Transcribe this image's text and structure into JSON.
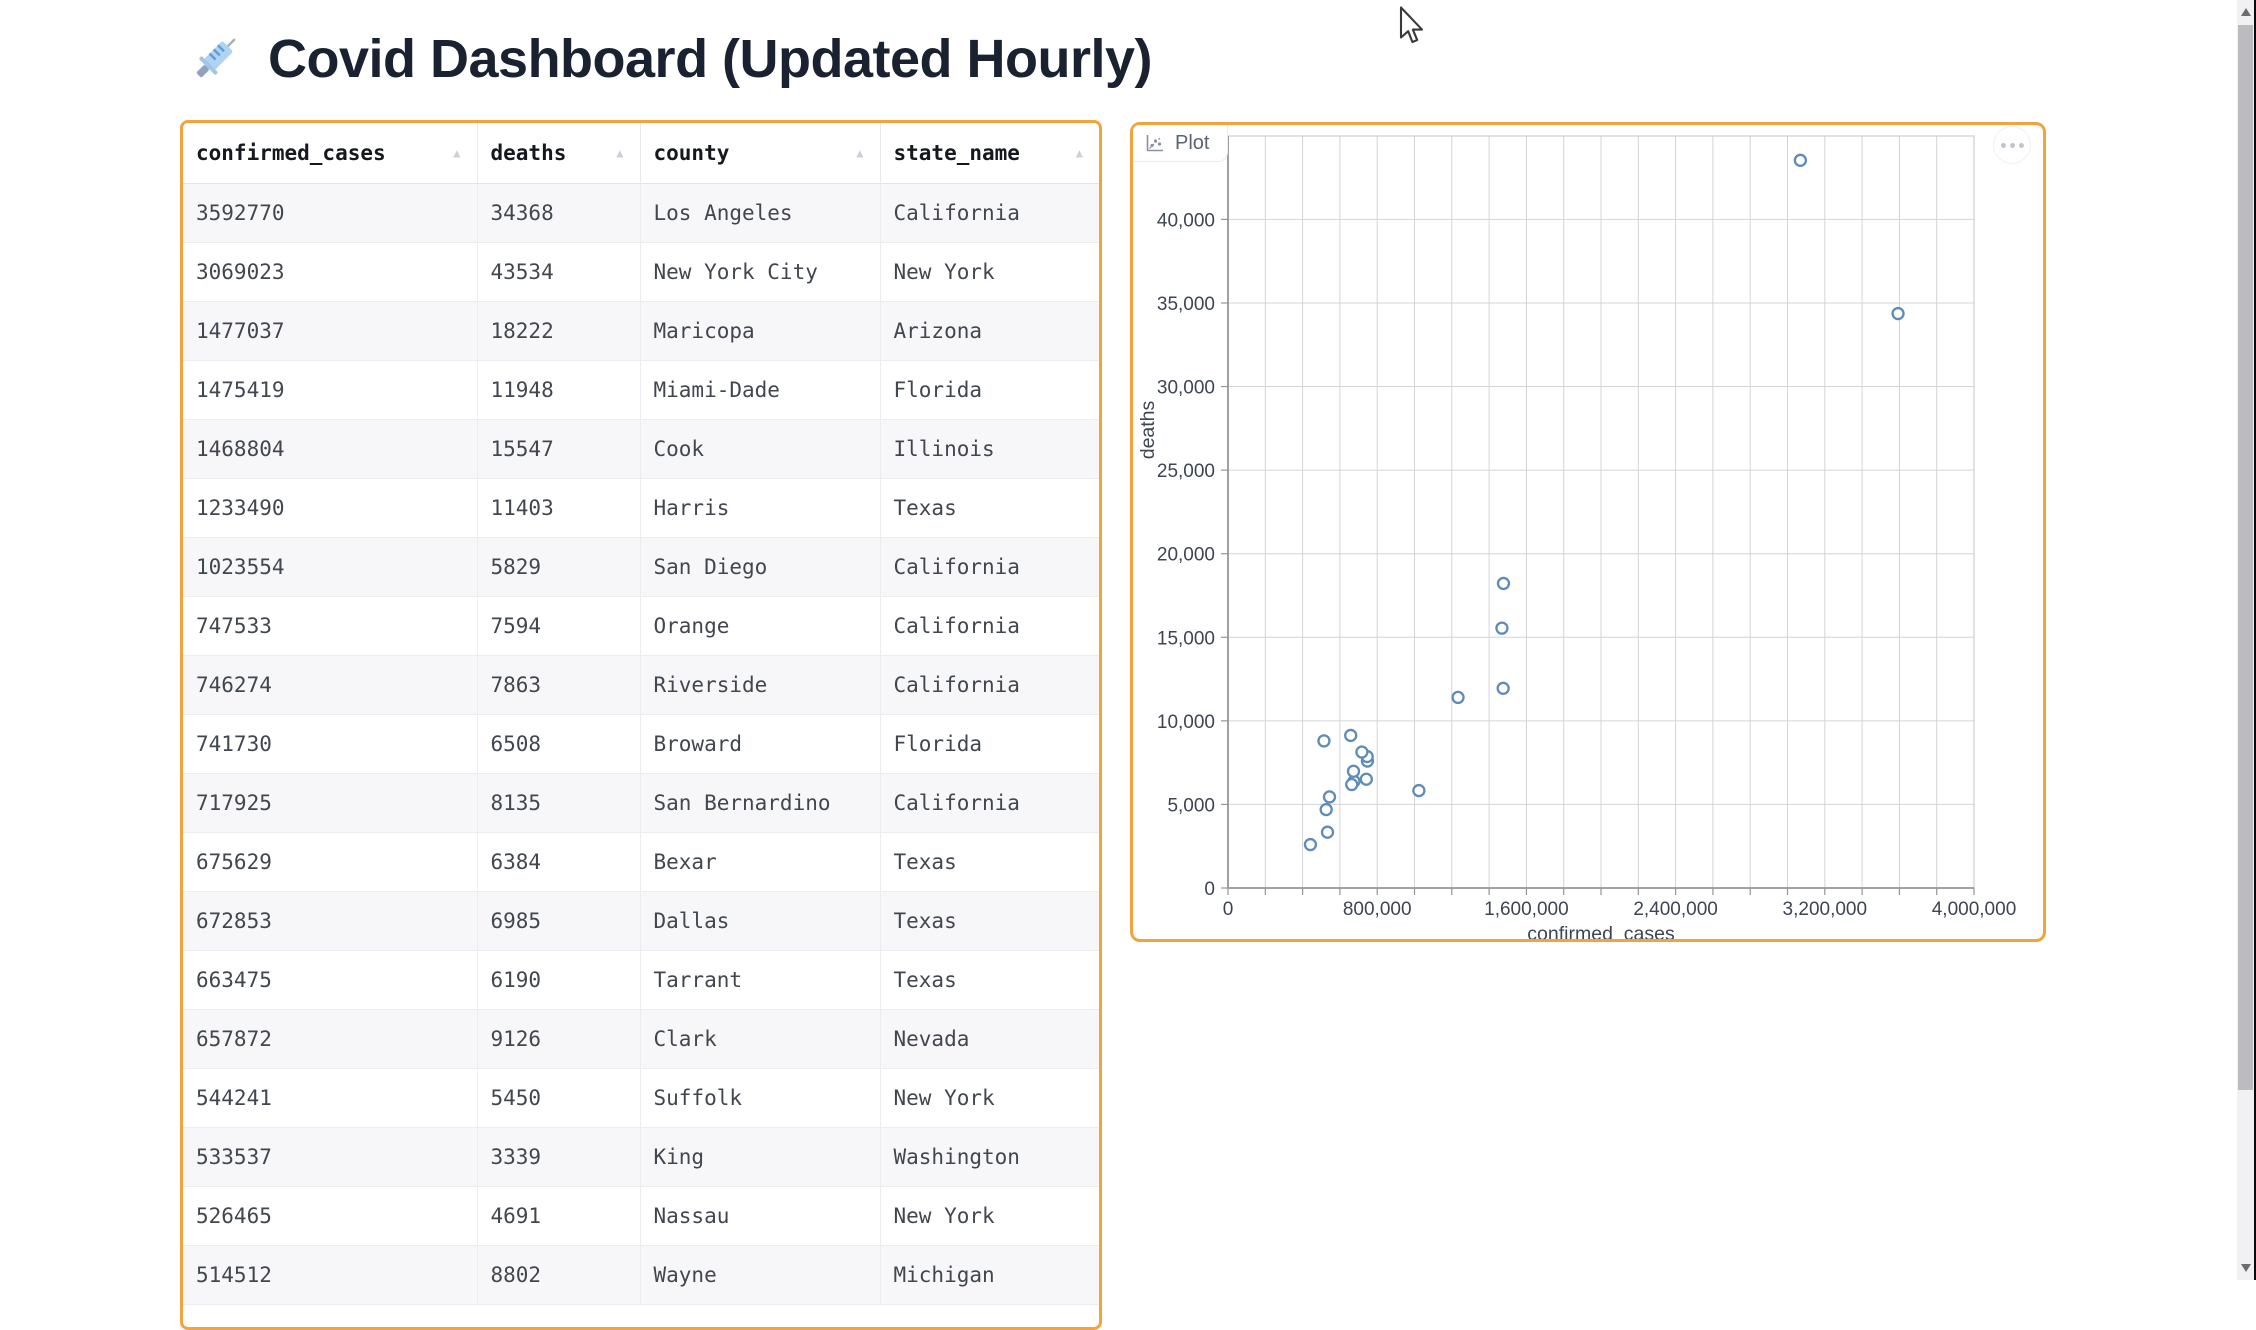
{
  "page": {
    "title": "Covid Dashboard (Updated Hourly)",
    "title_icon": "syringe-icon",
    "title_emoji": "💉"
  },
  "colors": {
    "accent_border": "#F2A33C",
    "point_stroke": "#5E8CB8",
    "gridline": "#d4d4d8",
    "axis": "#95959a",
    "title_text": "#1a2130"
  },
  "table": {
    "sort_icon": "▲",
    "columns": [
      "confirmed_cases",
      "deaths",
      "county",
      "state_name"
    ],
    "rows": [
      [
        "3592770",
        "34368",
        "Los Angeles",
        "California"
      ],
      [
        "3069023",
        "43534",
        "New York City",
        "New York"
      ],
      [
        "1477037",
        "18222",
        "Maricopa",
        "Arizona"
      ],
      [
        "1475419",
        "11948",
        "Miami-Dade",
        "Florida"
      ],
      [
        "1468804",
        "15547",
        "Cook",
        "Illinois"
      ],
      [
        "1233490",
        "11403",
        "Harris",
        "Texas"
      ],
      [
        "1023554",
        "5829",
        "San Diego",
        "California"
      ],
      [
        "747533",
        "7594",
        "Orange",
        "California"
      ],
      [
        "746274",
        "7863",
        "Riverside",
        "California"
      ],
      [
        "741730",
        "6508",
        "Broward",
        "Florida"
      ],
      [
        "717925",
        "8135",
        "San Bernardino",
        "California"
      ],
      [
        "675629",
        "6384",
        "Bexar",
        "Texas"
      ],
      [
        "672853",
        "6985",
        "Dallas",
        "Texas"
      ],
      [
        "663475",
        "6190",
        "Tarrant",
        "Texas"
      ],
      [
        "657872",
        "9126",
        "Clark",
        "Nevada"
      ],
      [
        "544241",
        "5450",
        "Suffolk",
        "New York"
      ],
      [
        "533537",
        "3339",
        "King",
        "Washington"
      ],
      [
        "526465",
        "4691",
        "Nassau",
        "New York"
      ],
      [
        "514512",
        "8802",
        "Wayne",
        "Michigan"
      ]
    ]
  },
  "plot_panel": {
    "tab_label": "Plot",
    "tab_icon": "scatter-chart-icon",
    "menu_icon": "ellipsis-menu-icon"
  },
  "chart_data": {
    "type": "scatter",
    "xlabel": "confirmed_cases",
    "ylabel": "deaths",
    "xlim": [
      0,
      4020000
    ],
    "ylim": [
      0,
      45000
    ],
    "grid": true,
    "x_minor_step": 200000,
    "x_ticks": [
      {
        "value": 0,
        "label": "0"
      },
      {
        "value": 800000,
        "label": "800,000"
      },
      {
        "value": 1600000,
        "label": "1,600,000"
      },
      {
        "value": 2400000,
        "label": "2,400,000"
      },
      {
        "value": 3200000,
        "label": "3,200,000"
      },
      {
        "value": 4000000,
        "label": "4,000,000"
      }
    ],
    "y_ticks": [
      {
        "value": 0,
        "label": "0"
      },
      {
        "value": 5000,
        "label": "5,000"
      },
      {
        "value": 10000,
        "label": "10,000"
      },
      {
        "value": 15000,
        "label": "15,000"
      },
      {
        "value": 20000,
        "label": "20,000"
      },
      {
        "value": 25000,
        "label": "25,000"
      },
      {
        "value": 30000,
        "label": "30,000"
      },
      {
        "value": 35000,
        "label": "35,000"
      },
      {
        "value": 40000,
        "label": "40,000"
      }
    ],
    "points": [
      {
        "county": "Los Angeles",
        "confirmed_cases": 3592770,
        "deaths": 34368
      },
      {
        "county": "New York City",
        "confirmed_cases": 3069023,
        "deaths": 43534
      },
      {
        "county": "Maricopa",
        "confirmed_cases": 1477037,
        "deaths": 18222
      },
      {
        "county": "Miami-Dade",
        "confirmed_cases": 1475419,
        "deaths": 11948
      },
      {
        "county": "Cook",
        "confirmed_cases": 1468804,
        "deaths": 15547
      },
      {
        "county": "Harris",
        "confirmed_cases": 1233490,
        "deaths": 11403
      },
      {
        "county": "San Diego",
        "confirmed_cases": 1023554,
        "deaths": 5829
      },
      {
        "county": "Orange",
        "confirmed_cases": 747533,
        "deaths": 7594
      },
      {
        "county": "Riverside",
        "confirmed_cases": 746274,
        "deaths": 7863
      },
      {
        "county": "Broward",
        "confirmed_cases": 741730,
        "deaths": 6508
      },
      {
        "county": "San Bernardino",
        "confirmed_cases": 717925,
        "deaths": 8135
      },
      {
        "county": "Bexar",
        "confirmed_cases": 675629,
        "deaths": 6384
      },
      {
        "county": "Dallas",
        "confirmed_cases": 672853,
        "deaths": 6985
      },
      {
        "county": "Tarrant",
        "confirmed_cases": 663475,
        "deaths": 6190
      },
      {
        "county": "Clark",
        "confirmed_cases": 657872,
        "deaths": 9126
      },
      {
        "county": "Suffolk",
        "confirmed_cases": 544241,
        "deaths": 5450
      },
      {
        "county": "King",
        "confirmed_cases": 533537,
        "deaths": 3339
      },
      {
        "county": "Nassau",
        "confirmed_cases": 526465,
        "deaths": 4691
      },
      {
        "county": "Wayne",
        "confirmed_cases": 514512,
        "deaths": 8802
      },
      {
        "county": "",
        "confirmed_cases": 442000,
        "deaths": 2600
      }
    ]
  }
}
